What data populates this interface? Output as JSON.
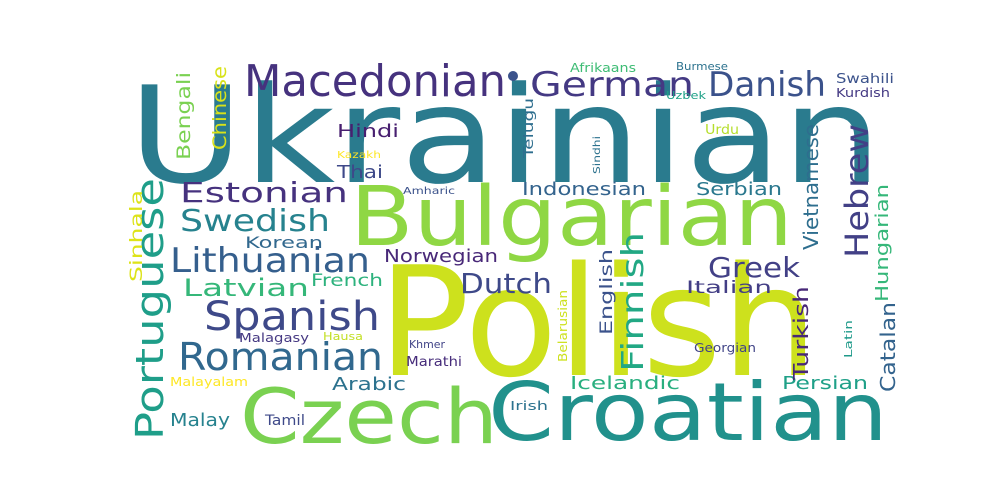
{
  "word_cloud": {
    "palette": "viridis",
    "words": [
      {
        "text": "Ukrainian",
        "color": "#2a7b8e"
      },
      {
        "text": "Polish",
        "color": "#cde11d"
      },
      {
        "text": "Bulgarian",
        "color": "#8fd744"
      },
      {
        "text": "Croatian",
        "color": "#21918c"
      },
      {
        "text": "Czech",
        "color": "#7ad151"
      },
      {
        "text": "Macedonian",
        "color": "#46327e"
      },
      {
        "text": "German",
        "color": "#443983"
      },
      {
        "text": "Danish",
        "color": "#3b528b"
      },
      {
        "text": "Portuguese",
        "color": "#1f9e89"
      },
      {
        "text": "Romanian",
        "color": "#31688e"
      },
      {
        "text": "Spanish",
        "color": "#3e4989"
      },
      {
        "text": "Lithuanian",
        "color": "#355f8d"
      },
      {
        "text": "Swedish",
        "color": "#26828e"
      },
      {
        "text": "Estonian",
        "color": "#46327e"
      },
      {
        "text": "Hebrew",
        "color": "#424086"
      },
      {
        "text": "Finnish",
        "color": "#22a884"
      },
      {
        "text": "Dutch",
        "color": "#3e4989"
      },
      {
        "text": "Greek",
        "color": "#424086"
      },
      {
        "text": "Latvian",
        "color": "#35b779"
      },
      {
        "text": "Vietnamese",
        "color": "#2e6e8e"
      },
      {
        "text": "Bengali",
        "color": "#7ad151"
      },
      {
        "text": "Chinese",
        "color": "#d8e219"
      },
      {
        "text": "Hungarian",
        "color": "#35b779"
      },
      {
        "text": "Turkish",
        "color": "#482878"
      },
      {
        "text": "Catalan",
        "color": "#33638d"
      },
      {
        "text": "Norwegian",
        "color": "#482878"
      },
      {
        "text": "Indonesian",
        "color": "#33638d"
      },
      {
        "text": "Serbian",
        "color": "#2a788e"
      },
      {
        "text": "Hindi",
        "color": "#481f70"
      },
      {
        "text": "Thai",
        "color": "#3e4989"
      },
      {
        "text": "Icelandic",
        "color": "#29af7f"
      },
      {
        "text": "Persian",
        "color": "#1fa088"
      },
      {
        "text": "Arabic",
        "color": "#2c728e"
      },
      {
        "text": "French",
        "color": "#2db27d"
      },
      {
        "text": "English",
        "color": "#3b528b"
      },
      {
        "text": "Italian",
        "color": "#433e85"
      },
      {
        "text": "Korean",
        "color": "#31688e"
      },
      {
        "text": "Sinhala",
        "color": "#dde318"
      },
      {
        "text": "Malay",
        "color": "#26828e"
      },
      {
        "text": "Marathi",
        "color": "#472d7b"
      },
      {
        "text": "Telugu",
        "color": "#2e6e8e"
      },
      {
        "text": "Tamil",
        "color": "#3e4989"
      },
      {
        "text": "Urdu",
        "color": "#b5de2b"
      },
      {
        "text": "Swahili",
        "color": "#3b528b"
      },
      {
        "text": "Kurdish",
        "color": "#443983"
      },
      {
        "text": "Georgian",
        "color": "#414487"
      },
      {
        "text": "Afrikaans",
        "color": "#3dbc74"
      },
      {
        "text": "Burmese",
        "color": "#2c728e"
      },
      {
        "text": "Uzbek",
        "color": "#1fa188"
      },
      {
        "text": "Malayalam",
        "color": "#fde725"
      },
      {
        "text": "Malagasy",
        "color": "#453882"
      },
      {
        "text": "Hausa",
        "color": "#c2df23"
      },
      {
        "text": "Khmer",
        "color": "#414487"
      },
      {
        "text": "Belarusian",
        "color": "#cde11d"
      },
      {
        "text": "Irish",
        "color": "#2c728e"
      },
      {
        "text": "Latin",
        "color": "#1f9a8a"
      },
      {
        "text": "Kazakh",
        "color": "#fde725"
      },
      {
        "text": "Amharic",
        "color": "#3b528b"
      },
      {
        "text": "Sindhi",
        "color": "#2c728e"
      }
    ]
  }
}
